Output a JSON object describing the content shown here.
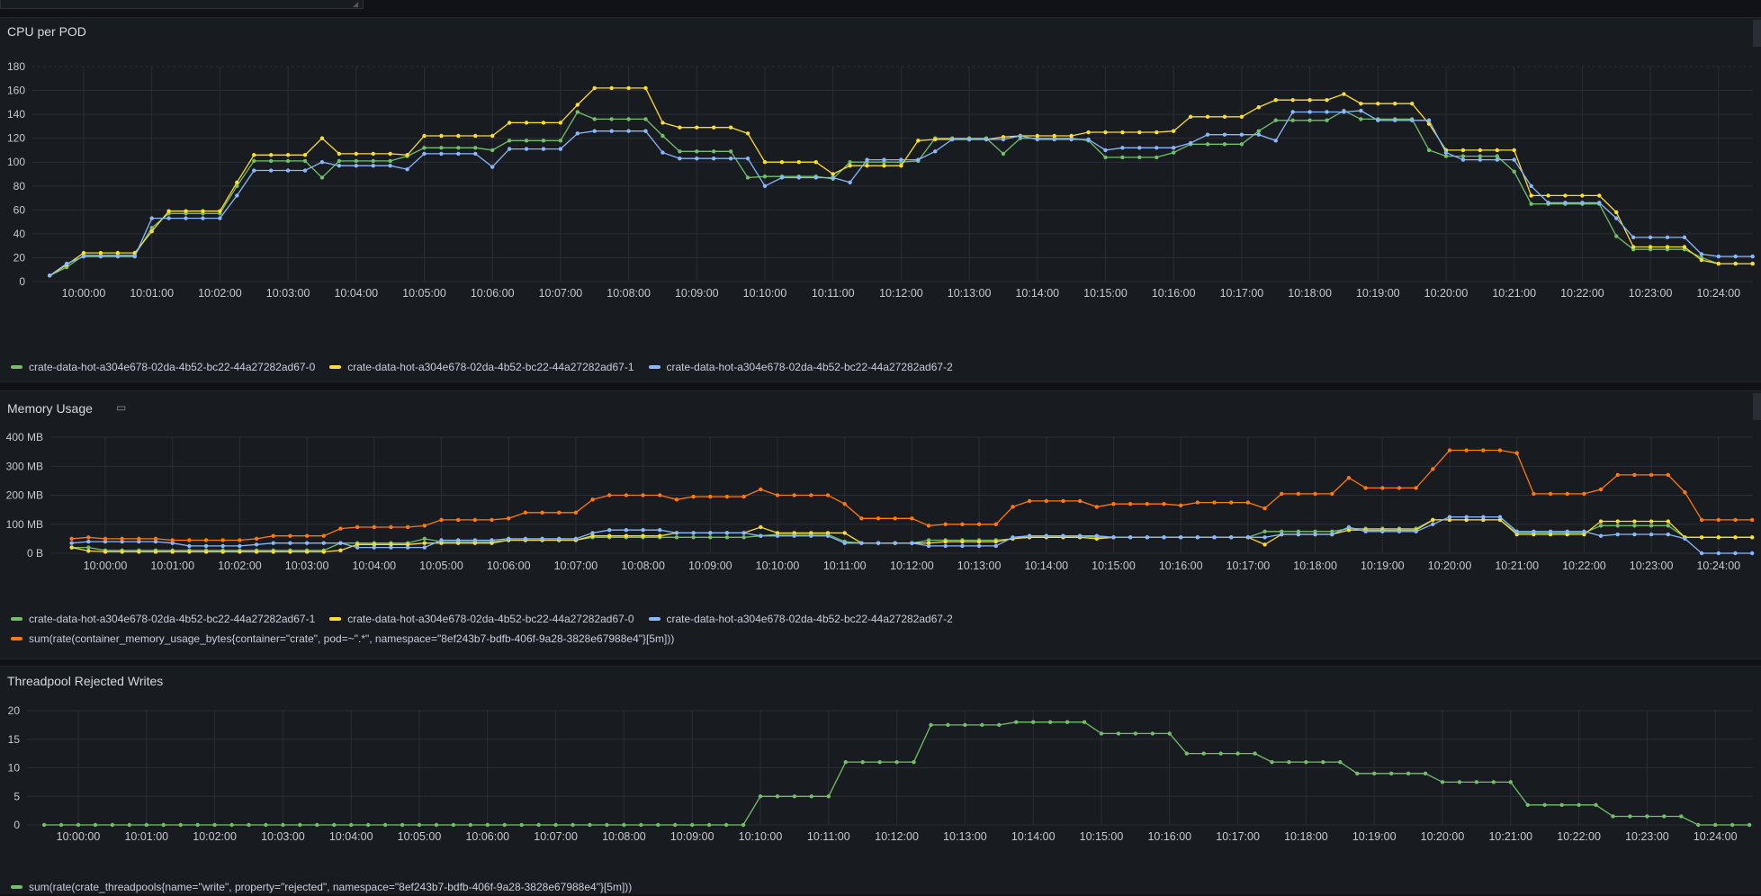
{
  "colors": {
    "green": "#73bf69",
    "yellow": "#fade2a",
    "blue": "#8ab8ff",
    "orange": "#ff780a"
  },
  "time_ticks": [
    "10:00:00",
    "10:01:00",
    "10:02:00",
    "10:03:00",
    "10:04:00",
    "10:05:00",
    "10:06:00",
    "10:07:00",
    "10:08:00",
    "10:09:00",
    "10:10:00",
    "10:11:00",
    "10:12:00",
    "10:13:00",
    "10:14:00",
    "10:15:00",
    "10:16:00",
    "10:17:00",
    "10:18:00",
    "10:19:00",
    "10:20:00",
    "10:21:00",
    "10:22:00",
    "10:23:00",
    "10:24:00"
  ],
  "panels": {
    "cpu": {
      "title": "CPU per POD",
      "chart_data": {
        "type": "line",
        "x_start": "09:59:30",
        "x_step_seconds": 15,
        "ylim": [
          0,
          180
        ],
        "y_ticks": [
          "0",
          "20",
          "40",
          "60",
          "80",
          "100",
          "120",
          "140",
          "160",
          "180"
        ],
        "series": [
          {
            "name": "crate-data-hot-a304e678-02da-4b52-bc22-44a27282ad67-0",
            "color": "green",
            "values": [
              5,
              12,
              22,
              22,
              22,
              22,
              45,
              57,
              57,
              57,
              57,
              80,
              101,
              101,
              101,
              101,
              87,
              101,
              101,
              101,
              101,
              105,
              112,
              112,
              112,
              112,
              110,
              118,
              118,
              118,
              118,
              142,
              136,
              136,
              136,
              136,
              122,
              109,
              109,
              109,
              109,
              87,
              88,
              88,
              88,
              88,
              86,
              100,
              100,
              100,
              100,
              101,
              120,
              120,
              120,
              120,
              107,
              120,
              120,
              120,
              120,
              118,
              104,
              104,
              104,
              104,
              108,
              115,
              115,
              115,
              115,
              126,
              135,
              135,
              135,
              135,
              143,
              136,
              136,
              136,
              136,
              110,
              105,
              105,
              105,
              105,
              92,
              65,
              65,
              65,
              65,
              65,
              38,
              27,
              27,
              27,
              27,
              20,
              15,
              15,
              15,
              15,
              6
            ]
          },
          {
            "name": "crate-data-hot-a304e678-02da-4b52-bc22-44a27282ad67-1",
            "color": "yellow",
            "values": [
              5,
              14,
              24,
              24,
              24,
              24,
              42,
              59,
              59,
              59,
              59,
              83,
              106,
              106,
              106,
              106,
              120,
              107,
              107,
              107,
              107,
              106,
              122,
              122,
              122,
              122,
              122,
              133,
              133,
              133,
              133,
              148,
              162,
              162,
              162,
              162,
              133,
              129,
              129,
              129,
              129,
              124,
              100,
              100,
              100,
              100,
              90,
              97,
              97,
              97,
              97,
              118,
              119,
              119,
              119,
              119,
              121,
              122,
              122,
              122,
              122,
              125,
              125,
              125,
              125,
              125,
              126,
              138,
              138,
              138,
              138,
              146,
              152,
              152,
              152,
              152,
              157,
              149,
              149,
              149,
              149,
              132,
              110,
              110,
              110,
              110,
              110,
              72,
              72,
              72,
              72,
              72,
              58,
              29,
              29,
              29,
              29,
              18,
              15,
              15,
              15,
              15,
              11
            ]
          },
          {
            "name": "crate-data-hot-a304e678-02da-4b52-bc22-44a27282ad67-2",
            "color": "blue",
            "values": [
              5,
              15,
              21,
              21,
              21,
              21,
              53,
              53,
              53,
              53,
              53,
              72,
              93,
              93,
              93,
              93,
              100,
              97,
              97,
              97,
              97,
              94,
              107,
              107,
              107,
              107,
              96,
              111,
              111,
              111,
              111,
              124,
              126,
              126,
              126,
              126,
              108,
              103,
              103,
              103,
              103,
              103,
              80,
              87,
              87,
              87,
              87,
              83,
              102,
              102,
              102,
              102,
              109,
              119,
              119,
              119,
              119,
              122,
              119,
              119,
              119,
              119,
              110,
              112,
              112,
              112,
              112,
              116,
              123,
              123,
              123,
              123,
              118,
              142,
              142,
              142,
              142,
              143,
              135,
              135,
              135,
              135,
              108,
              102,
              102,
              102,
              102,
              80,
              66,
              66,
              66,
              66,
              53,
              37,
              37,
              37,
              37,
              23,
              21,
              21,
              21,
              21,
              1
            ]
          }
        ]
      }
    },
    "memory": {
      "title": "Memory Usage",
      "chart_data": {
        "type": "line",
        "x_start": "09:59:30",
        "x_step_seconds": 15,
        "ylim": [
          0,
          400
        ],
        "y_ticks": [
          "0 B",
          "100 MB",
          "200 MB",
          "300 MB",
          "400 MB"
        ],
        "series": [
          {
            "name": "crate-data-hot-a304e678-02da-4b52-bc22-44a27282ad67-1",
            "color": "green",
            "values": [
              20,
              20,
              10,
              10,
              10,
              10,
              10,
              10,
              10,
              10,
              10,
              10,
              10,
              10,
              10,
              10,
              35,
              35,
              35,
              35,
              35,
              50,
              40,
              40,
              40,
              40,
              45,
              45,
              45,
              45,
              45,
              55,
              55,
              55,
              55,
              55,
              55,
              55,
              55,
              55,
              55,
              60,
              65,
              65,
              65,
              65,
              40,
              35,
              35,
              35,
              35,
              45,
              45,
              45,
              45,
              45,
              50,
              60,
              60,
              60,
              60,
              55,
              55,
              55,
              55,
              55,
              55,
              55,
              55,
              55,
              55,
              75,
              75,
              75,
              75,
              75,
              85,
              85,
              85,
              85,
              85,
              115,
              115,
              115,
              115,
              115,
              70,
              70,
              70,
              70,
              70,
              95,
              95,
              95,
              95,
              95,
              55,
              55,
              55,
              55,
              55,
              55,
              40
            ]
          },
          {
            "name": "crate-data-hot-a304e678-02da-4b52-bc22-44a27282ad67-0",
            "color": "yellow",
            "values": [
              20,
              8,
              5,
              5,
              5,
              5,
              5,
              5,
              5,
              5,
              5,
              5,
              5,
              5,
              5,
              5,
              10,
              30,
              30,
              30,
              30,
              35,
              35,
              35,
              35,
              35,
              45,
              45,
              45,
              45,
              45,
              60,
              60,
              60,
              60,
              60,
              70,
              70,
              70,
              70,
              70,
              90,
              70,
              70,
              70,
              70,
              70,
              35,
              35,
              35,
              35,
              35,
              40,
              40,
              40,
              40,
              50,
              55,
              55,
              55,
              55,
              50,
              55,
              55,
              55,
              55,
              55,
              55,
              55,
              55,
              55,
              30,
              65,
              65,
              65,
              65,
              80,
              80,
              80,
              80,
              80,
              115,
              115,
              115,
              115,
              115,
              65,
              65,
              65,
              65,
              65,
              110,
              110,
              110,
              110,
              110,
              55,
              55,
              55,
              55,
              55,
              55,
              75
            ]
          },
          {
            "name": "crate-data-hot-a304e678-02da-4b52-bc22-44a27282ad67-2",
            "color": "blue",
            "values": [
              35,
              40,
              40,
              40,
              40,
              40,
              35,
              25,
              25,
              25,
              25,
              30,
              35,
              35,
              35,
              35,
              35,
              20,
              20,
              20,
              20,
              20,
              45,
              45,
              45,
              45,
              50,
              50,
              50,
              50,
              50,
              70,
              80,
              80,
              80,
              80,
              70,
              70,
              70,
              70,
              70,
              60,
              60,
              60,
              60,
              60,
              35,
              35,
              35,
              35,
              35,
              25,
              25,
              25,
              25,
              25,
              55,
              60,
              60,
              60,
              60,
              60,
              55,
              55,
              55,
              55,
              55,
              55,
              55,
              55,
              55,
              55,
              65,
              65,
              65,
              65,
              90,
              75,
              75,
              75,
              75,
              100,
              125,
              125,
              125,
              125,
              75,
              75,
              75,
              75,
              75,
              60,
              65,
              65,
              65,
              65,
              50,
              0,
              0,
              0,
              0,
              0,
              0
            ]
          },
          {
            "name": "sum(rate(container_memory_usage_bytes{container=\"crate\", pod=~\".*\", namespace=\"8ef243b7-bdfb-406f-9a28-3828e67988e4\"}[5m]))",
            "color": "orange",
            "values": [
              50,
              55,
              50,
              50,
              50,
              50,
              45,
              45,
              45,
              45,
              45,
              50,
              60,
              60,
              60,
              60,
              85,
              90,
              90,
              90,
              90,
              95,
              115,
              115,
              115,
              115,
              120,
              140,
              140,
              140,
              140,
              185,
              200,
              200,
              200,
              200,
              185,
              195,
              195,
              195,
              195,
              220,
              200,
              200,
              200,
              200,
              170,
              120,
              120,
              120,
              120,
              95,
              100,
              100,
              100,
              100,
              160,
              180,
              180,
              180,
              180,
              160,
              170,
              170,
              170,
              170,
              165,
              175,
              175,
              175,
              175,
              155,
              205,
              205,
              205,
              205,
              260,
              225,
              225,
              225,
              225,
              290,
              355,
              355,
              355,
              355,
              345,
              205,
              205,
              205,
              205,
              220,
              270,
              270,
              270,
              270,
              210,
              115,
              115,
              115,
              115,
              115,
              120
            ]
          }
        ]
      }
    },
    "threadpool": {
      "title": "Threadpool Rejected Writes",
      "chart_data": {
        "type": "line",
        "x_start": "09:59:30",
        "x_step_seconds": 15,
        "ylim": [
          0,
          20
        ],
        "y_ticks": [
          "0",
          "5",
          "10",
          "15",
          "20"
        ],
        "series": [
          {
            "name": "sum(rate(crate_threadpools{name=\"write\", property=\"rejected\", namespace=\"8ef243b7-bdfb-406f-9a28-3828e67988e4\"}[5m]))",
            "color": "green",
            "values": [
              0,
              0,
              0,
              0,
              0,
              0,
              0,
              0,
              0,
              0,
              0,
              0,
              0,
              0,
              0,
              0,
              0,
              0,
              0,
              0,
              0,
              0,
              0,
              0,
              0,
              0,
              0,
              0,
              0,
              0,
              0,
              0,
              0,
              0,
              0,
              0,
              0,
              0,
              0,
              0,
              0,
              0,
              5,
              5,
              5,
              5,
              5,
              11,
              11,
              11,
              11,
              11,
              17.5,
              17.5,
              17.5,
              17.5,
              17.5,
              18,
              18,
              18,
              18,
              18,
              16,
              16,
              16,
              16,
              16,
              12.5,
              12.5,
              12.5,
              12.5,
              12.5,
              11,
              11,
              11,
              11,
              11,
              9,
              9,
              9,
              9,
              9,
              7.5,
              7.5,
              7.5,
              7.5,
              7.5,
              3.5,
              3.5,
              3.5,
              3.5,
              3.5,
              1.5,
              1.5,
              1.5,
              1.5,
              1.5,
              0,
              0,
              0,
              0,
              0
            ]
          }
        ]
      }
    }
  }
}
